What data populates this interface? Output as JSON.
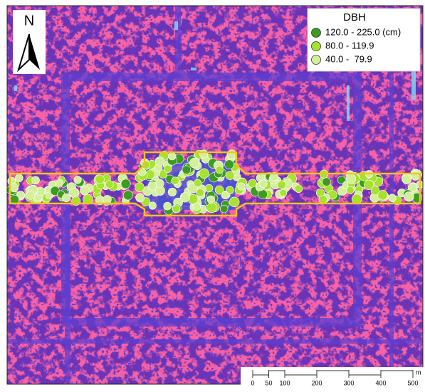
{
  "legend": {
    "title": "DBH",
    "items": [
      {
        "label": "120.0 - 225.0 (cm)",
        "color": "#3c9b22"
      },
      {
        "label": "80.0 - 119.9",
        "color": "#a6e22e"
      },
      {
        "label": "40.0 -  79.9",
        "color": "#d4ef9c"
      }
    ]
  },
  "north_arrow": {
    "label": "N"
  },
  "scale_bar": {
    "ticks": [
      0,
      50,
      100,
      200,
      300,
      400,
      500
    ],
    "unit": "m"
  }
}
